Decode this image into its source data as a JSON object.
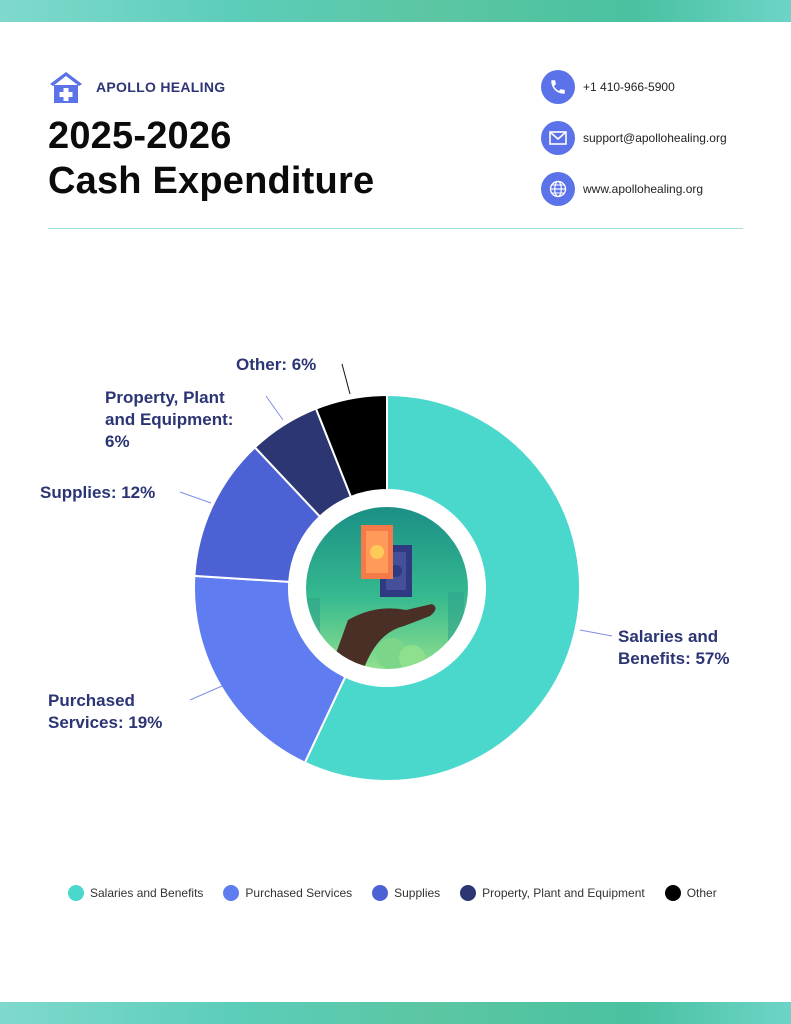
{
  "brand": {
    "name": "APOLLO HEALING",
    "color": "#5b72e8"
  },
  "title": {
    "line1": "2025-2026",
    "line2": "Cash Expenditure"
  },
  "contacts": [
    {
      "icon": "phone-icon",
      "text": "+1 410-966-5900"
    },
    {
      "icon": "mail-icon",
      "text": "support@apollohealing.org"
    },
    {
      "icon": "globe-icon",
      "text": "www.apollohealing.org"
    }
  ],
  "chart_data": {
    "type": "pie",
    "style": "donut",
    "center_image": "money-in-hand-illustration",
    "legend_position": "bottom",
    "categories": [
      "Salaries and Benefits",
      "Purchased Services",
      "Supplies",
      "Property, Plant and Equipment",
      "Other"
    ],
    "values": [
      57,
      19,
      12,
      6,
      6
    ],
    "unit": "%",
    "colors": [
      "#4ad8cc",
      "#5f7cf0",
      "#4c62d4",
      "#2b3672",
      "#000000"
    ],
    "labels": [
      {
        "lines": [
          "Salaries and",
          "Benefits: 57%"
        ]
      },
      {
        "lines": [
          "Purchased",
          "Services: 19%"
        ]
      },
      {
        "lines": [
          "Supplies: 12%"
        ]
      },
      {
        "lines": [
          "Property, Plant",
          "and Equipment:",
          "6%"
        ]
      },
      {
        "lines": [
          "Other: 6%"
        ]
      }
    ]
  }
}
